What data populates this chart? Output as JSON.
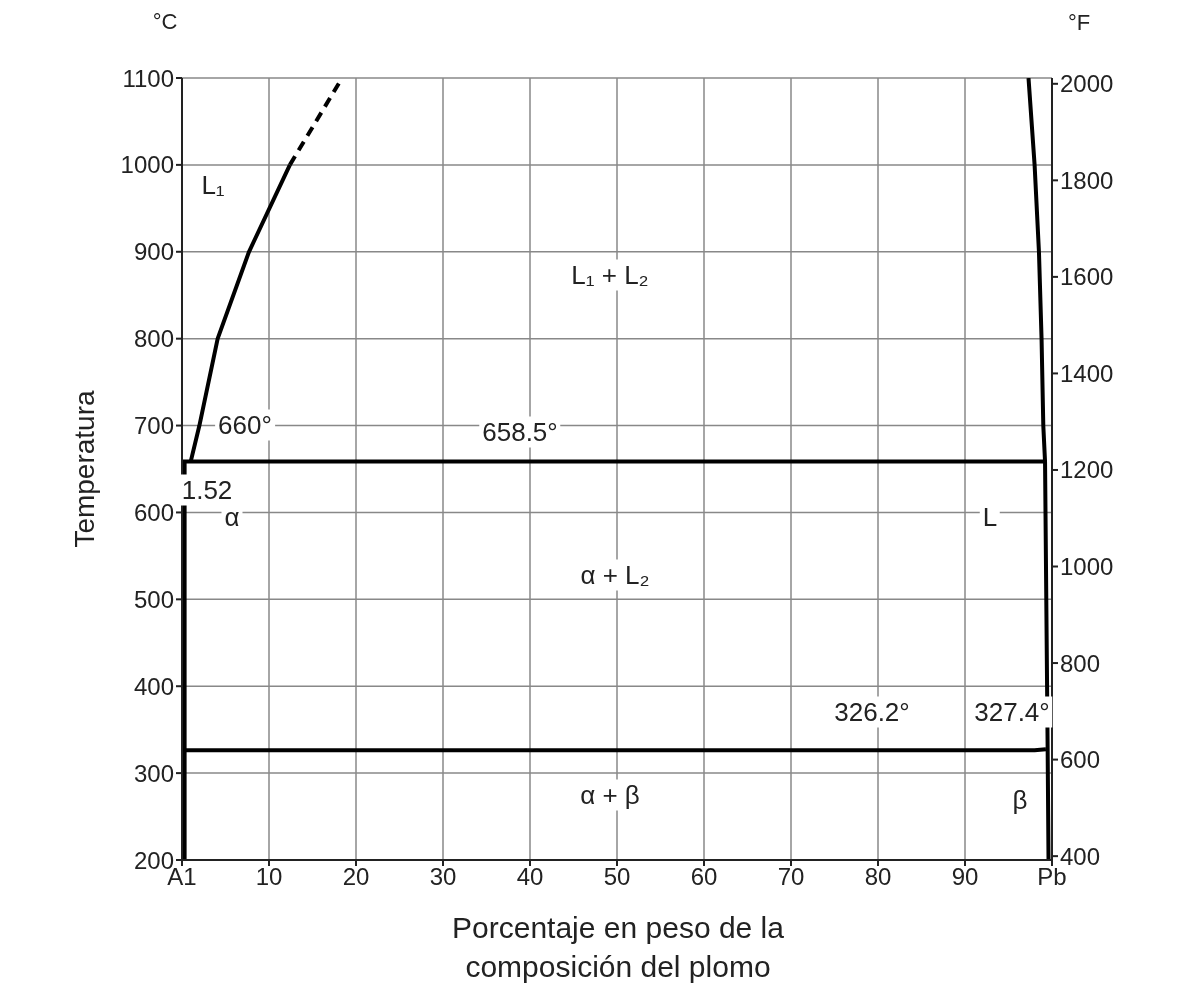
{
  "chart_data": {
    "type": "line",
    "ylabel": "Temperatura",
    "y2label": "°F",
    "xlabel": "Porcentaje en peso de la composición del plomo",
    "xlim": [
      0,
      100
    ],
    "xticks": [
      {
        "value": 0,
        "label": "A1"
      },
      10,
      20,
      30,
      40,
      50,
      60,
      70,
      80,
      90,
      {
        "value": 100,
        "label": "Pb"
      }
    ],
    "ylim": [
      200,
      1100
    ],
    "yticks": [
      200,
      300,
      400,
      500,
      600,
      700,
      800,
      900,
      1000,
      1100
    ],
    "y2lim": [
      392,
      2012
    ],
    "y2ticks": [
      400,
      600,
      800,
      1000,
      1200,
      1400,
      1600,
      1800,
      2000
    ],
    "grid": true,
    "marker": "none",
    "series": [
      {
        "color": "#000000",
        "x": [
          1,
          2,
          4.1,
          7.7,
          12.4
        ],
        "values": [
          658.5,
          700,
          800,
          900,
          1000
        ],
        "line_style": "solid"
      },
      {
        "color": "#000000",
        "x": [
          12.4,
          18.4
        ],
        "values": [
          1000,
          1100
        ],
        "line_style": "dashed"
      },
      {
        "color": "#000000",
        "x": [
          0,
          99.2
        ],
        "values": [
          658.5,
          658.5
        ],
        "line_style": "solid"
      },
      {
        "color": "#000000",
        "x": [
          0,
          98,
          99.3
        ],
        "values": [
          326.2,
          326.2,
          327.4
        ],
        "line_style": "solid"
      },
      {
        "color": "#000000",
        "x": [
          97.3,
          98,
          98.5,
          98.8,
          99,
          99.2,
          99.5,
          99.6
        ],
        "values": [
          1100,
          1000,
          900,
          800,
          700,
          658.5,
          327.4,
          200
        ],
        "line_style": "solid"
      },
      {
        "color": "#000000",
        "x": [
          0.3,
          0.3
        ],
        "values": [
          658.5,
          200
        ],
        "line_style": "solid"
      }
    ],
    "annotations": [
      "°C",
      "L₁",
      "L₁ + L₂",
      "660°",
      "658.5°",
      "1.52",
      "α",
      "α + L₂",
      "L",
      "326.2°",
      "327.4°",
      "α + β",
      "β"
    ]
  }
}
